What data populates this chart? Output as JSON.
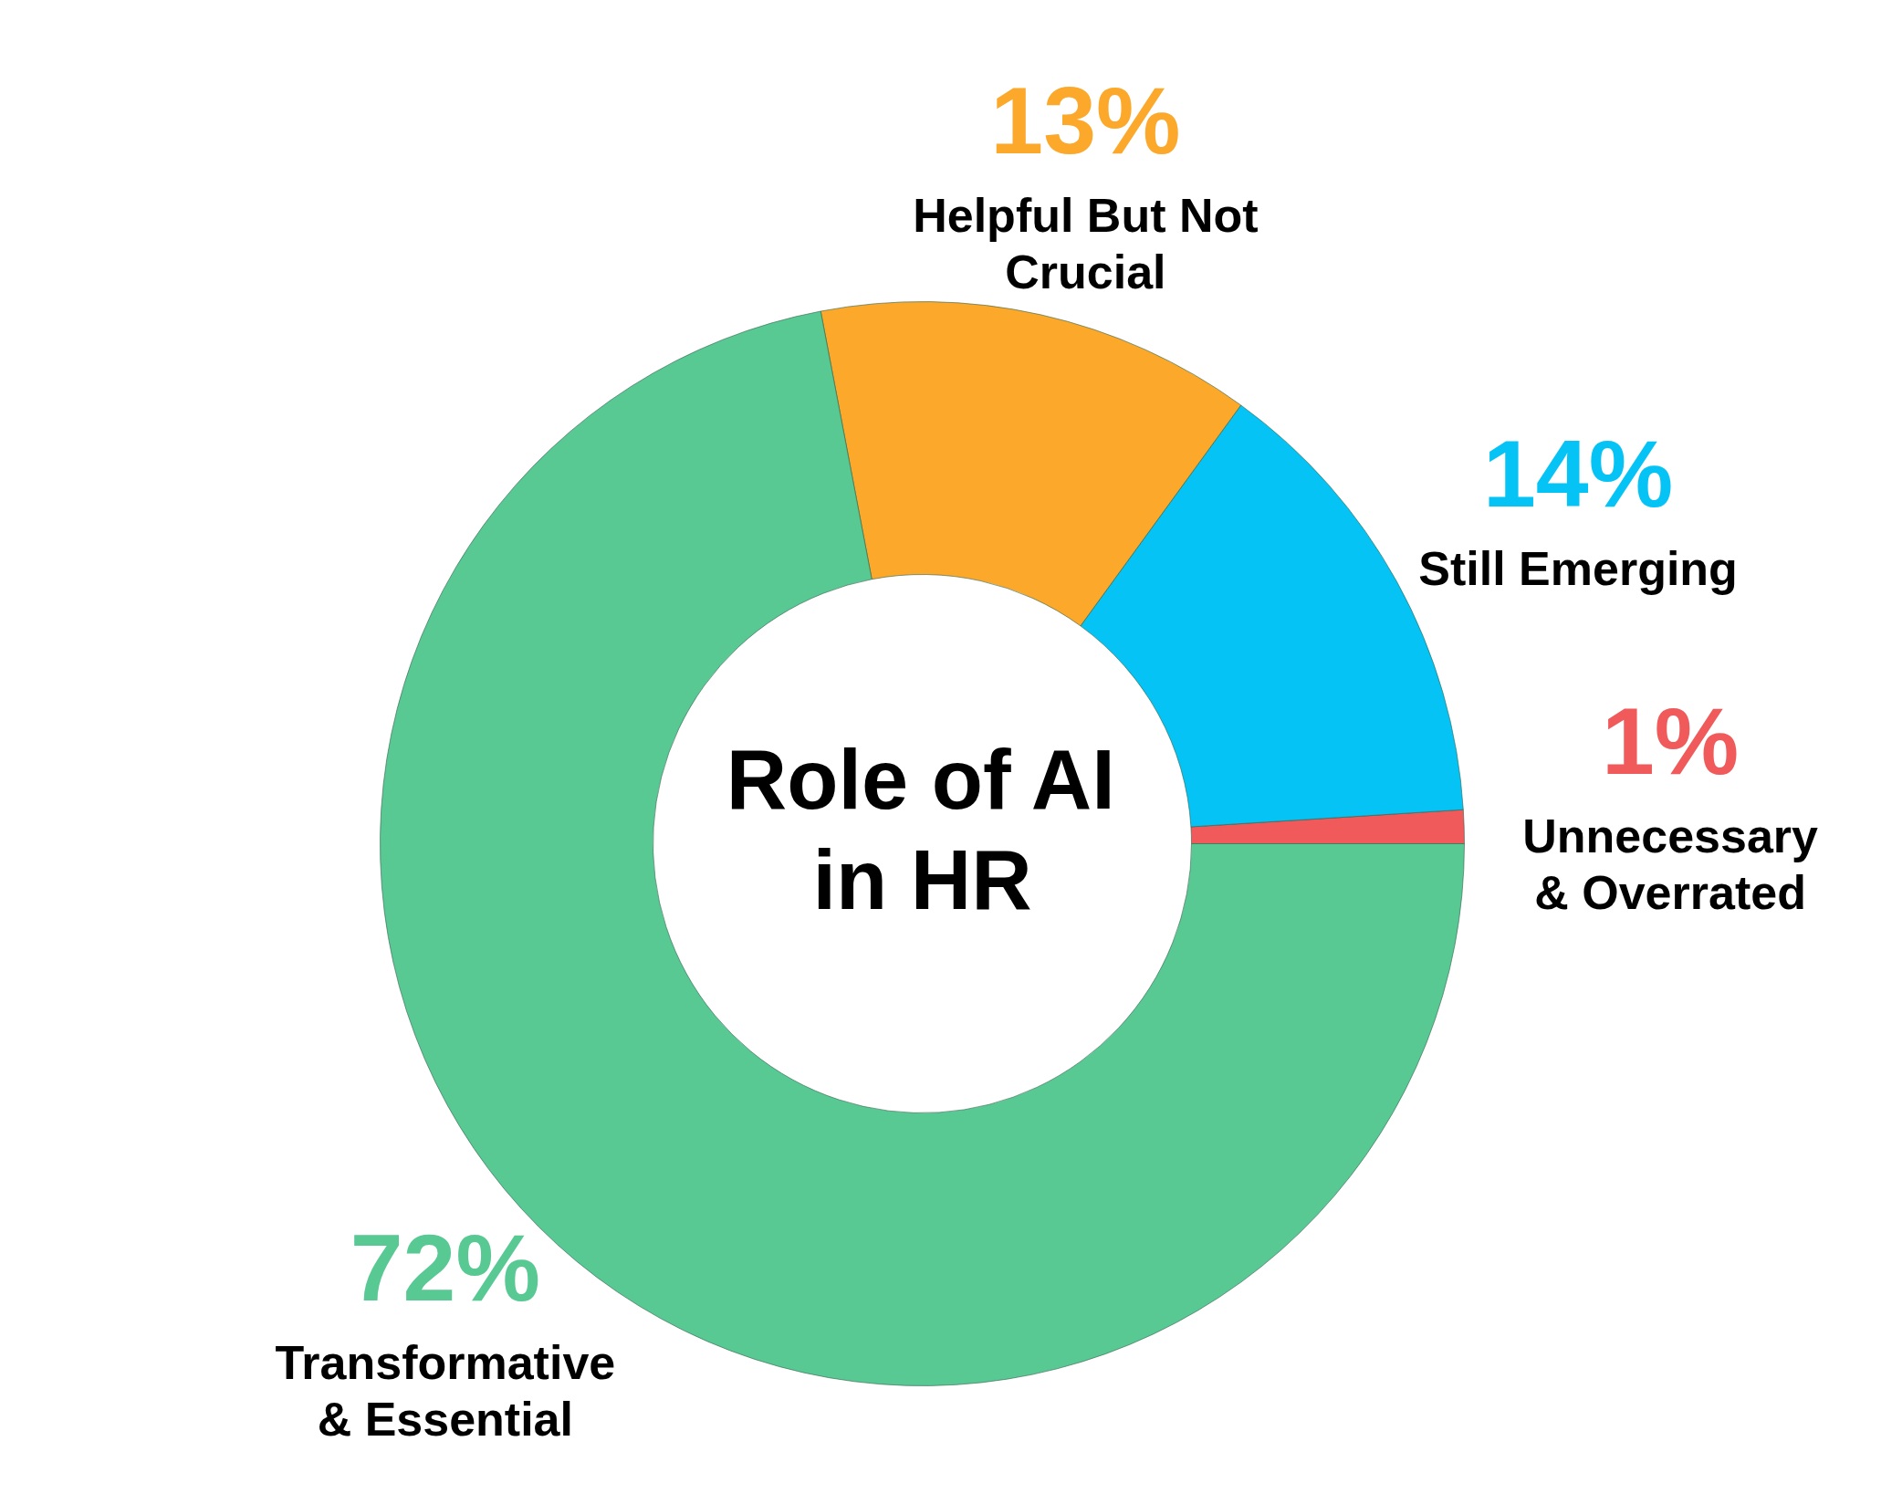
{
  "chart_data": {
    "type": "donut",
    "title": "Role of AI in HR",
    "categories": [
      "Unnecessary & Overrated",
      "Still Emerging",
      "Helpful But Not Crucial",
      "Transformative & Essential"
    ],
    "values": [
      1,
      14,
      13,
      72
    ],
    "colors": [
      "#f05a5a",
      "#05c4f5",
      "#fba82b",
      "#59c994"
    ],
    "value_labels": [
      "1%",
      "14%",
      "13%",
      "72%"
    ]
  }
}
